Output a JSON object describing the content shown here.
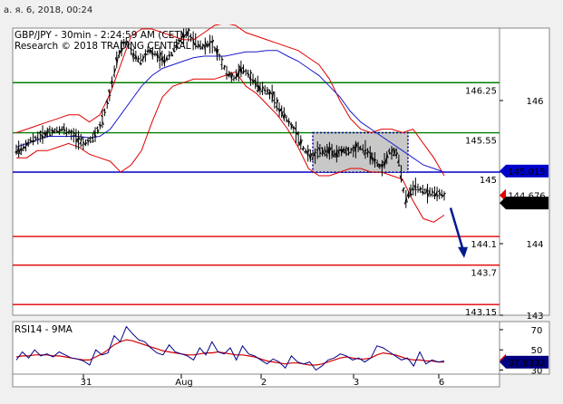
{
  "timestamp": "а. я. 6, 2018, 00:24",
  "chart_data": [
    {
      "type": "line",
      "title": "GBP/JPY - 30min - 2:24:59 AM (CET)",
      "subtitle": "Research © 2018 TRADING CENTRAL",
      "xlabels": [
        "31",
        "Aug",
        "2",
        "3",
        "6"
      ],
      "y_ticks": [
        146,
        145,
        144,
        143
      ],
      "y_tick_labels": [
        "146",
        "145",
        "144",
        "143"
      ],
      "ylim": [
        142.95,
        147.0
      ],
      "levels": [
        {
          "value": 146.25,
          "label": "146.25",
          "color": "#008000"
        },
        {
          "value": 145.55,
          "label": "145.55",
          "color": "#008000"
        },
        {
          "value": 145.0,
          "label": "145",
          "color": "#0000cc"
        },
        {
          "value": 144.1,
          "label": "144.1",
          "color": "#e00000"
        },
        {
          "value": 143.7,
          "label": "143.7",
          "color": "#e00000"
        },
        {
          "value": 143.15,
          "label": "143.15",
          "color": "#e00000"
        }
      ],
      "markers": [
        {
          "value": 145.015,
          "label": "145.015",
          "color": "#0000cc"
        },
        {
          "value": 144.676,
          "label": "144.676",
          "color": "#e00000"
        },
        {
          "value": 144.568,
          "label": "144.568",
          "color": "#000000"
        }
      ],
      "price": [
        145.3,
        145.35,
        145.45,
        145.5,
        145.55,
        145.58,
        145.6,
        145.55,
        145.45,
        145.4,
        145.5,
        145.7,
        146.1,
        146.6,
        146.85,
        146.65,
        146.55,
        146.7,
        146.65,
        146.55,
        146.65,
        146.85,
        146.95,
        146.8,
        146.75,
        146.8,
        146.65,
        146.4,
        146.3,
        146.45,
        146.35,
        146.2,
        146.15,
        146.05,
        145.85,
        145.7,
        145.55,
        145.3,
        145.2,
        145.3,
        145.3,
        145.25,
        145.3,
        145.3,
        145.35,
        145.3,
        145.15,
        145.05,
        145.3,
        145.25,
        144.6,
        144.8,
        144.75,
        144.72,
        144.7,
        144.68
      ],
      "ma_blue": [
        145.35,
        145.4,
        145.45,
        145.5,
        145.5,
        145.5,
        145.5,
        145.48,
        145.5,
        145.6,
        145.8,
        146.0,
        146.2,
        146.35,
        146.45,
        146.5,
        146.55,
        146.6,
        146.62,
        146.62,
        146.62,
        146.65,
        146.68,
        146.68,
        146.7,
        146.7,
        146.62,
        146.55,
        146.45,
        146.35,
        146.2,
        146.05,
        145.85,
        145.7,
        145.6,
        145.5,
        145.4,
        145.3,
        145.2,
        145.1,
        145.05,
        145.0
      ],
      "bb_upper": [
        145.55,
        145.6,
        145.65,
        145.7,
        145.75,
        145.8,
        145.8,
        145.7,
        145.8,
        146.1,
        146.5,
        146.9,
        147.0,
        147.0,
        146.95,
        146.9,
        146.85,
        146.85,
        146.95,
        147.05,
        147.08,
        147.05,
        146.95,
        146.9,
        146.85,
        146.8,
        146.75,
        146.7,
        146.6,
        146.5,
        146.3,
        146.0,
        145.75,
        145.6,
        145.55,
        145.6,
        145.6,
        145.55,
        145.6,
        145.4,
        145.2,
        144.95
      ],
      "bb_lower": [
        145.2,
        145.2,
        145.3,
        145.3,
        145.35,
        145.4,
        145.35,
        145.25,
        145.2,
        145.15,
        145.0,
        145.1,
        145.3,
        145.7,
        146.05,
        146.2,
        146.25,
        146.3,
        146.3,
        146.3,
        146.35,
        146.4,
        146.2,
        146.1,
        145.95,
        145.8,
        145.6,
        145.35,
        145.05,
        144.95,
        144.95,
        145.0,
        145.05,
        145.05,
        145.0,
        145.0,
        144.95,
        144.9,
        144.6,
        144.35,
        144.3,
        144.4
      ],
      "box": {
        "y_top": 145.55,
        "y_bottom": 145.0
      },
      "arrow": {
        "from": 144.5,
        "to": 143.8
      }
    },
    {
      "type": "line",
      "title": "RSI14 - 9MA",
      "y_ticks": [
        70,
        50,
        30
      ],
      "y_tick_labels": [
        "70",
        "50",
        "30"
      ],
      "ylim": [
        26,
        78
      ],
      "rsi": [
        40,
        48,
        42,
        50,
        44,
        46,
        43,
        48,
        45,
        42,
        41,
        39,
        35,
        50,
        45,
        47,
        64,
        58,
        73,
        66,
        60,
        58,
        52,
        47,
        45,
        55,
        48,
        46,
        44,
        40,
        52,
        45,
        58,
        48,
        46,
        52,
        40,
        54,
        46,
        44,
        40,
        36,
        41,
        38,
        32,
        44,
        38,
        36,
        38,
        30,
        34,
        40,
        42,
        46,
        44,
        40,
        42,
        38,
        42,
        54,
        52,
        48,
        44,
        40,
        42,
        34,
        48,
        36,
        40,
        38,
        39
      ],
      "ma": [
        43,
        44,
        44,
        45,
        45,
        45,
        44,
        44,
        43,
        42,
        41,
        40,
        40,
        43,
        46,
        50,
        55,
        58,
        60,
        59,
        57,
        55,
        53,
        51,
        49,
        48,
        47,
        46,
        45,
        45,
        46,
        47,
        47,
        48,
        47,
        46,
        45,
        45,
        44,
        43,
        41,
        39,
        38,
        37,
        36,
        37,
        37,
        36,
        35,
        35,
        36,
        38,
        40,
        42,
        43,
        42,
        41,
        41,
        42,
        45,
        47,
        46,
        45,
        43,
        41,
        40,
        40,
        39,
        39,
        38,
        38
      ],
      "markers": [
        {
          "value": 39.6686,
          "label": "39.6686",
          "color": "#e00000"
        },
        {
          "value": 37.8332,
          "label": "37.8332",
          "color": "#000080"
        }
      ]
    }
  ]
}
